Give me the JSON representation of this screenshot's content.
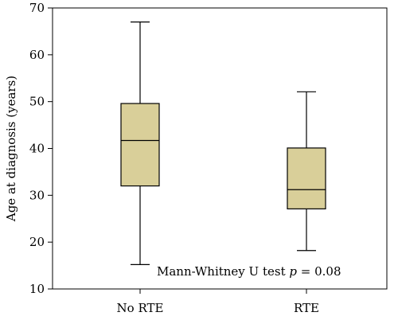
{
  "chart_data": {
    "type": "box",
    "ylabel": "Age at diagnosis (years)",
    "ylim": [
      10,
      70
    ],
    "yticks": [
      10,
      20,
      30,
      40,
      50,
      60,
      70
    ],
    "categories": [
      "No RTE",
      "RTE"
    ],
    "boxes": [
      {
        "category": "No RTE",
        "min": 15.2,
        "q1": 32.0,
        "median": 41.7,
        "q3": 49.6,
        "max": 67.0
      },
      {
        "category": "RTE",
        "min": 18.2,
        "q1": 27.1,
        "median": 31.2,
        "q3": 40.1,
        "max": 52.1
      }
    ],
    "annotation": {
      "prefix": "Mann-Whitney U test ",
      "p_symbol": "p",
      "suffix": " = 0.08"
    },
    "colors": {
      "box_fill": "#d9cf99",
      "stroke": "#000000"
    }
  }
}
